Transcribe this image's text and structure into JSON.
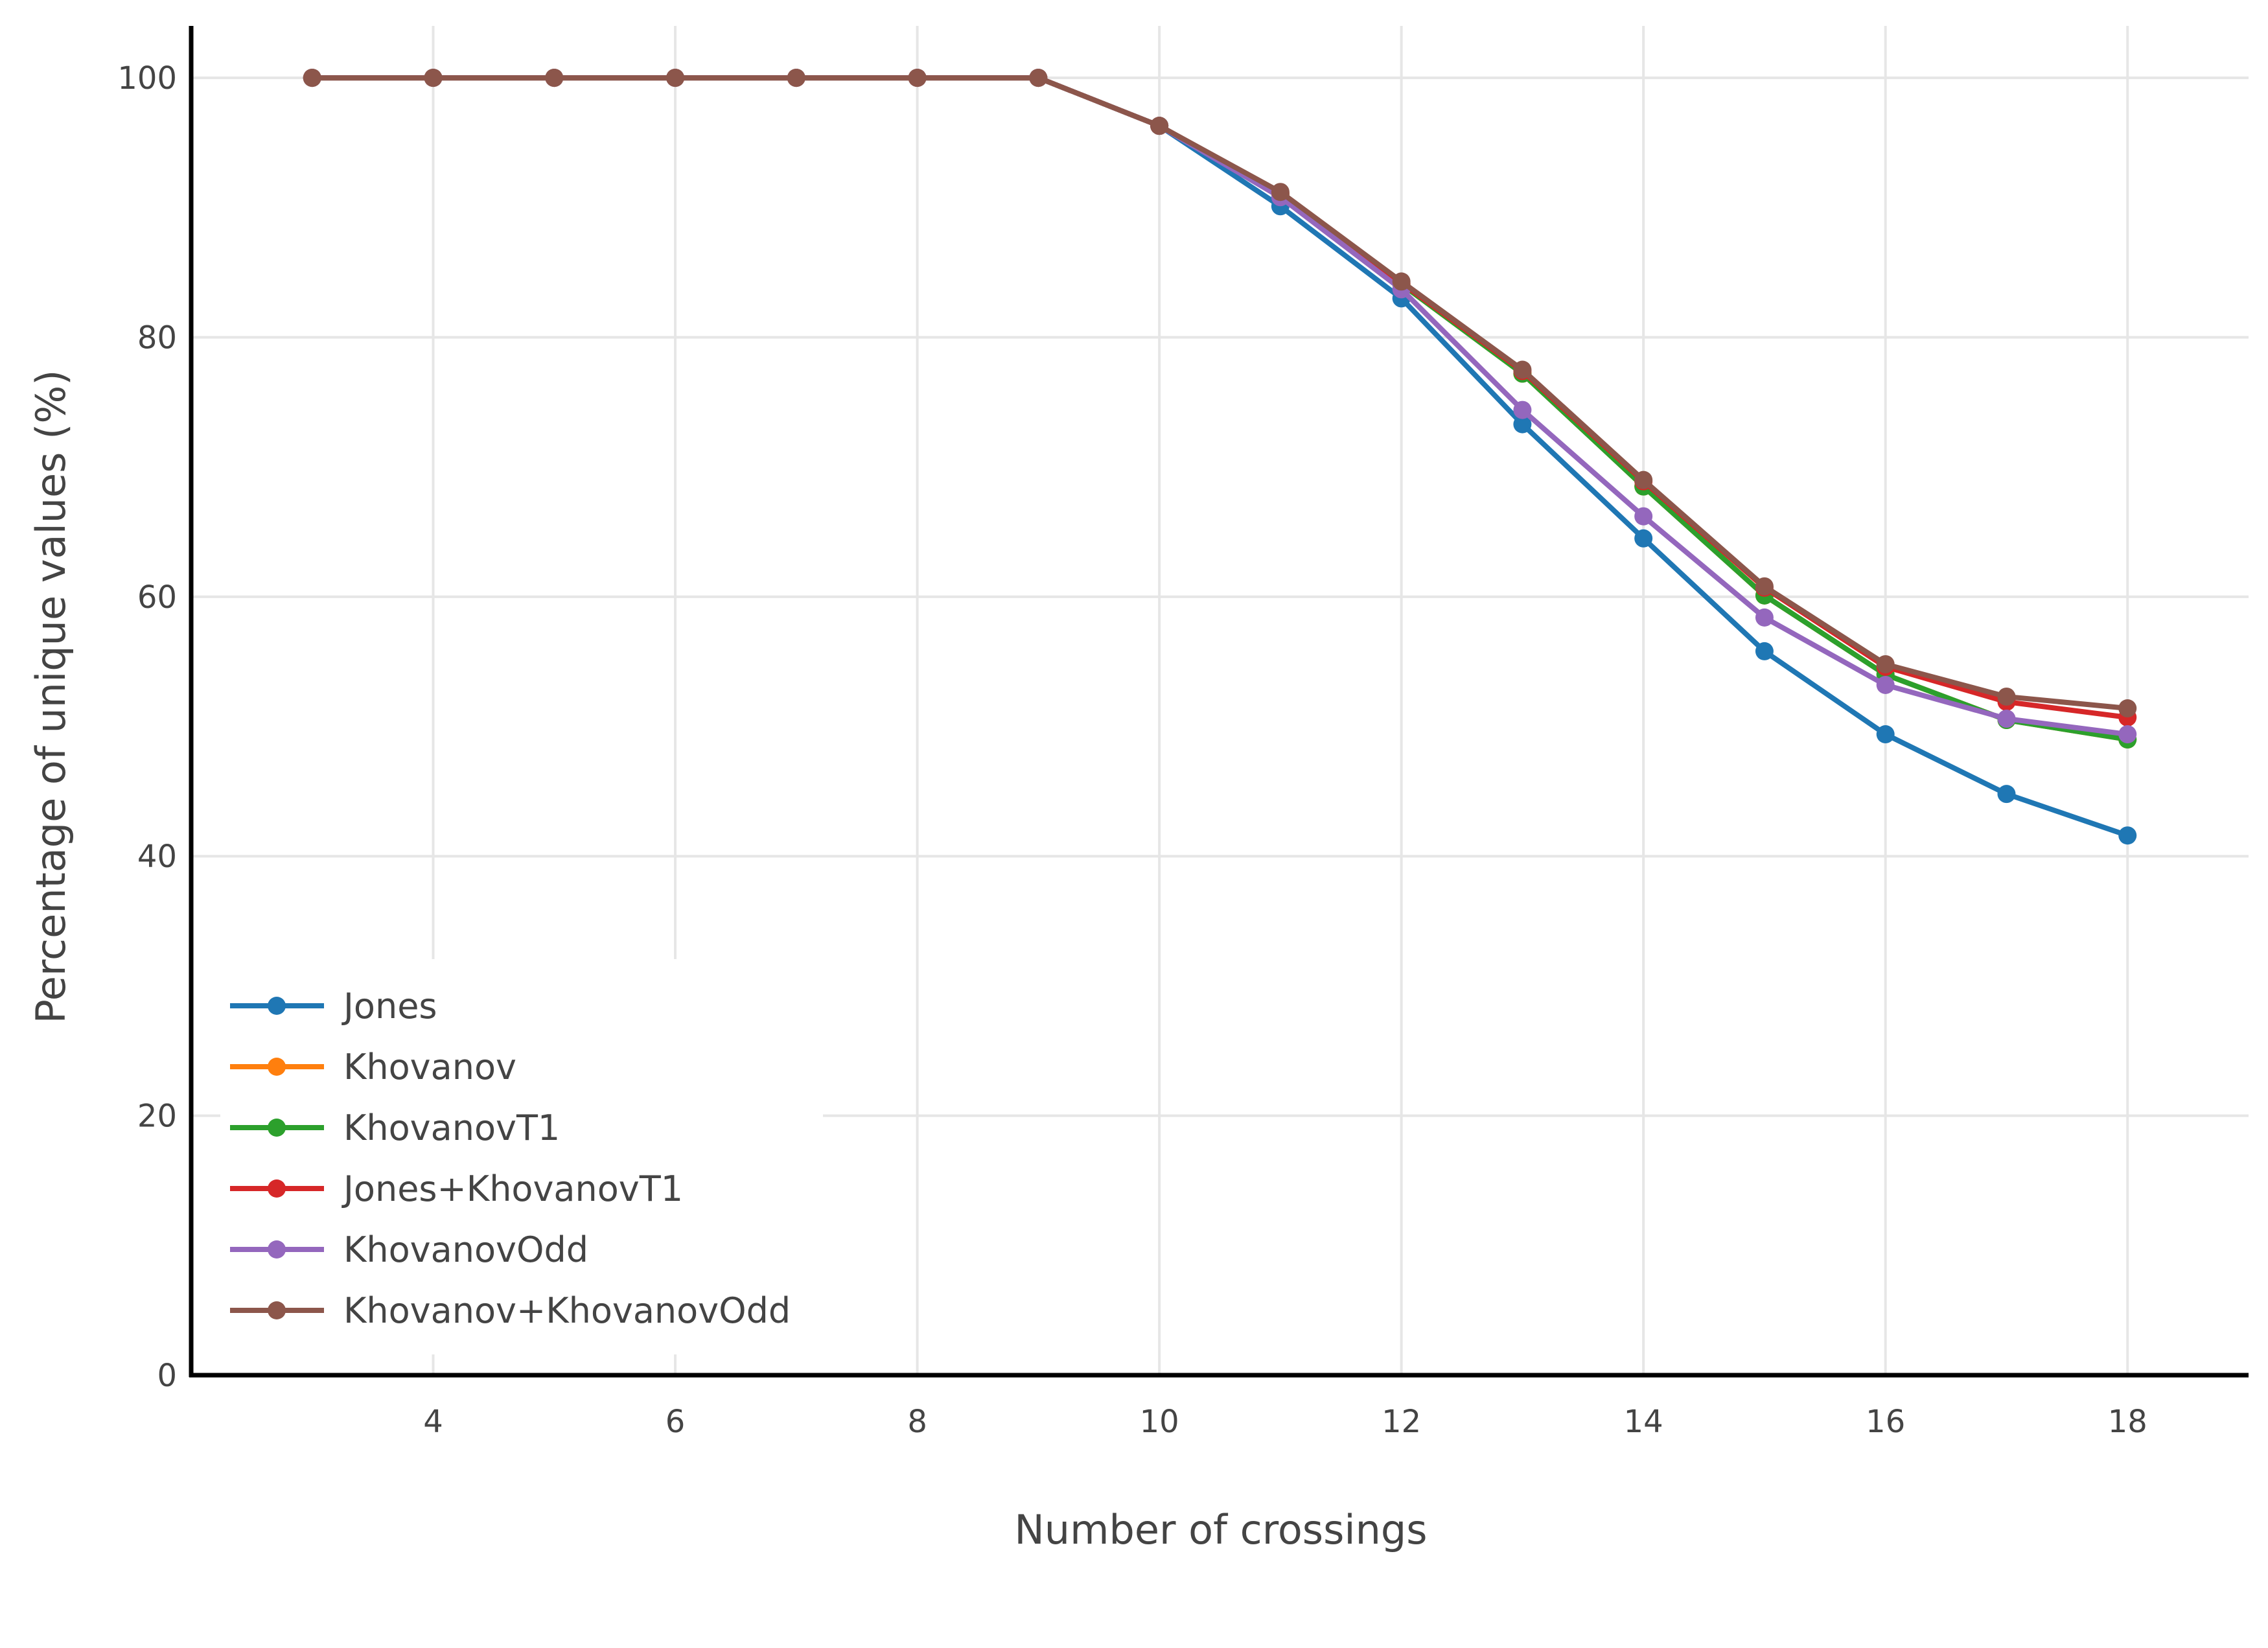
{
  "chart_data": {
    "type": "line",
    "title": "",
    "xlabel": "Number of crossings",
    "ylabel": "Percentage of unique values (%)",
    "xlim": [
      2,
      19
    ],
    "ylim": [
      0,
      104
    ],
    "x_ticks": [
      4,
      6,
      8,
      10,
      12,
      14,
      16,
      18
    ],
    "y_ticks": [
      0,
      20,
      40,
      60,
      80,
      100
    ],
    "grid": true,
    "legend_position": "bottom-left",
    "x": [
      3,
      4,
      5,
      6,
      7,
      8,
      9,
      10,
      11,
      12,
      13,
      14,
      15,
      16,
      17,
      18
    ],
    "series": [
      {
        "name": "Jones",
        "color": "#1f77b4",
        "values": [
          100,
          100,
          100,
          100,
          100,
          100,
          100,
          96.3,
          90.1,
          83.0,
          73.3,
          64.5,
          55.8,
          49.4,
          44.8,
          41.6
        ]
      },
      {
        "name": "Khovanov",
        "color": "#ff7f0e",
        "values": [
          100,
          100,
          100,
          100,
          100,
          100,
          100,
          96.3,
          91.0,
          84.1,
          77.2,
          68.5,
          60.1,
          54.0,
          50.5,
          49.0
        ]
      },
      {
        "name": "KhovanovT1",
        "color": "#2ca02c",
        "values": [
          100,
          100,
          100,
          100,
          100,
          100,
          100,
          96.3,
          91.0,
          84.1,
          77.2,
          68.5,
          60.1,
          54.0,
          50.5,
          49.0
        ]
      },
      {
        "name": "Jones+KhovanovT1",
        "color": "#d62728",
        "values": [
          100,
          100,
          100,
          100,
          100,
          100,
          100,
          96.3,
          91.1,
          84.2,
          77.4,
          68.9,
          60.7,
          54.6,
          51.9,
          50.7
        ]
      },
      {
        "name": "KhovanovOdd",
        "color": "#9467bd",
        "values": [
          100,
          100,
          100,
          100,
          100,
          100,
          100,
          96.3,
          90.8,
          83.7,
          74.4,
          66.2,
          58.4,
          53.2,
          50.6,
          49.4
        ]
      },
      {
        "name": "Khovanov+KhovanovOdd",
        "color": "#8c564b",
        "values": [
          100,
          100,
          100,
          100,
          100,
          100,
          100,
          96.3,
          91.2,
          84.3,
          77.5,
          69.0,
          60.8,
          54.8,
          52.3,
          51.4
        ]
      }
    ]
  }
}
